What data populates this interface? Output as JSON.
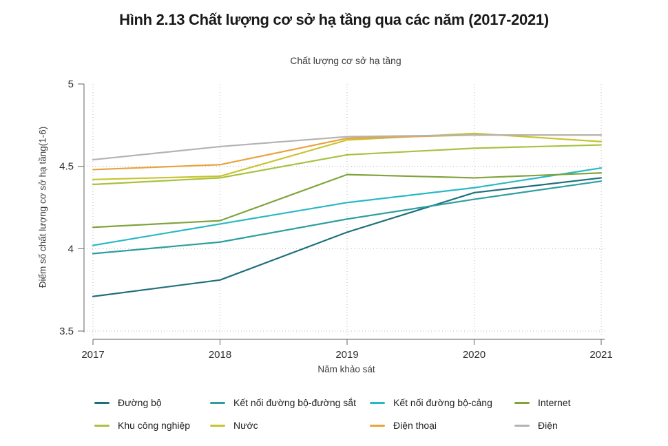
{
  "title": "Hình 2.13 Chất lượng cơ sở hạ tầng qua các năm (2017-2021)",
  "chart_data": {
    "type": "line",
    "title": "Chất lượng cơ sở hạ tầng",
    "xlabel": "Năm khảo sát",
    "ylabel": "Điểm số chất lượng cơ sở hạ tầng(1-6)",
    "x": [
      2017,
      2018,
      2019,
      2020,
      2021
    ],
    "ylim": [
      3.5,
      5
    ],
    "yticks": [
      5,
      4.5,
      4,
      3.5
    ],
    "grid": "dotted horizontal and vertical",
    "legend_position": "bottom",
    "series": [
      {
        "name": "Đường bộ",
        "color": "#1e6f7c",
        "values": [
          3.71,
          3.81,
          4.1,
          4.34,
          4.43
        ]
      },
      {
        "name": "Kết nối đường bộ-đường sắt",
        "color": "#2d9e9f",
        "values": [
          3.97,
          4.04,
          4.18,
          4.3,
          4.41
        ]
      },
      {
        "name": "Kết nối đường bộ-cảng",
        "color": "#27b8c5",
        "values": [
          4.02,
          4.15,
          4.28,
          4.37,
          4.49
        ]
      },
      {
        "name": "Internet",
        "color": "#7fa43c",
        "values": [
          4.13,
          4.17,
          4.45,
          4.43,
          4.46
        ]
      },
      {
        "name": "Khu công nghiệp",
        "color": "#a6c23f",
        "values": [
          4.39,
          4.43,
          4.57,
          4.61,
          4.63
        ]
      },
      {
        "name": "Nước",
        "color": "#c9c32d",
        "values": [
          4.42,
          4.44,
          4.66,
          4.7,
          4.65
        ]
      },
      {
        "name": "Điện thoại",
        "color": "#e9a33d",
        "values": [
          4.48,
          4.51,
          4.67,
          4.69,
          4.69
        ]
      },
      {
        "name": "Điện",
        "color": "#b3b3b3",
        "values": [
          4.54,
          4.62,
          4.68,
          4.69,
          4.69
        ]
      }
    ],
    "colors": {
      "axis": "#7d7d7d",
      "gridline": "#b8b8b8",
      "tick_text": "#2e2e2e"
    }
  }
}
